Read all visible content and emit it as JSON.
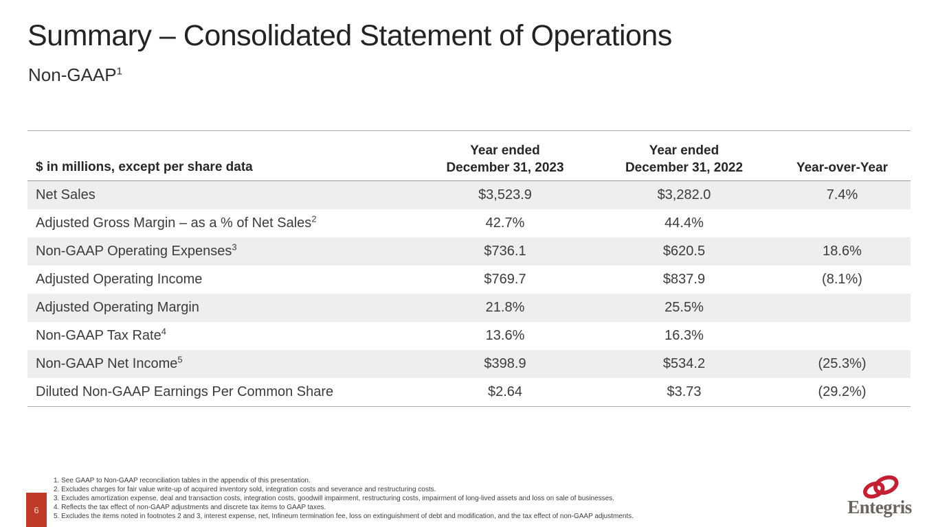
{
  "slide": {
    "title": "Summary – Consolidated Statement of Operations",
    "subtitle": "Non-GAAP",
    "subtitle_sup": "1",
    "page_number": "6"
  },
  "table": {
    "header": {
      "col1": "$ in millions, except per share data",
      "col2_line1": "Year ended",
      "col2_line2": "December 31, 2023",
      "col3_line1": "Year ended",
      "col3_line2": "December 31, 2022",
      "col4": "Year-over-Year"
    },
    "rows": [
      {
        "label": "Net Sales",
        "sup": "",
        "y2023": "$3,523.9",
        "y2022": "$3,282.0",
        "yoy": "7.4%"
      },
      {
        "label": "Adjusted Gross Margin – as a % of Net Sales",
        "sup": "2",
        "y2023": "42.7%",
        "y2022": "44.4%",
        "yoy": ""
      },
      {
        "label": "Non-GAAP Operating Expenses",
        "sup": "3",
        "y2023": "$736.1",
        "y2022": "$620.5",
        "yoy": "18.6%"
      },
      {
        "label": "Adjusted Operating Income",
        "sup": "",
        "y2023": "$769.7",
        "y2022": "$837.9",
        "yoy": "(8.1%)"
      },
      {
        "label": "Adjusted Operating Margin",
        "sup": "",
        "y2023": "21.8%",
        "y2022": "25.5%",
        "yoy": ""
      },
      {
        "label": "Non-GAAP Tax Rate",
        "sup": "4",
        "y2023": "13.6%",
        "y2022": "16.3%",
        "yoy": ""
      },
      {
        "label": "Non-GAAP Net Income",
        "sup": "5",
        "y2023": "$398.9",
        "y2022": "$534.2",
        "yoy": "(25.3%)"
      },
      {
        "label": "Diluted Non-GAAP Earnings Per Common Share",
        "sup": "",
        "y2023": "$2.64",
        "y2022": "$3.73",
        "yoy": "(29.2%)"
      }
    ]
  },
  "footnotes": [
    "1. See GAAP to Non-GAAP reconciliation tables in the appendix of this presentation.",
    "2. Excludes charges for fair value write-up of acquired inventory sold, integration costs and severance and restructuring costs.",
    "3. Excludes amortization expense, deal and transaction costs, integration costs, goodwill impairment, restructuring costs, impairment of long-lived assets and loss on sale of businesses.",
    "4. Reflects the tax effect of non-GAAP adjustments and discrete tax items to GAAP taxes.",
    "5. Excludes the items noted in footnotes 2 and 3, interest expense, net, Infineum termination fee, loss on extinguishment of debt and modification, and the tax effect of non-GAAP adjustments."
  ],
  "logo": {
    "text": "Entegris"
  },
  "colors": {
    "accent_red": "#bf3a27",
    "logo_red": "#c32033",
    "logo_text_gray": "#6b635c",
    "row_stripe": "#efeeec"
  }
}
